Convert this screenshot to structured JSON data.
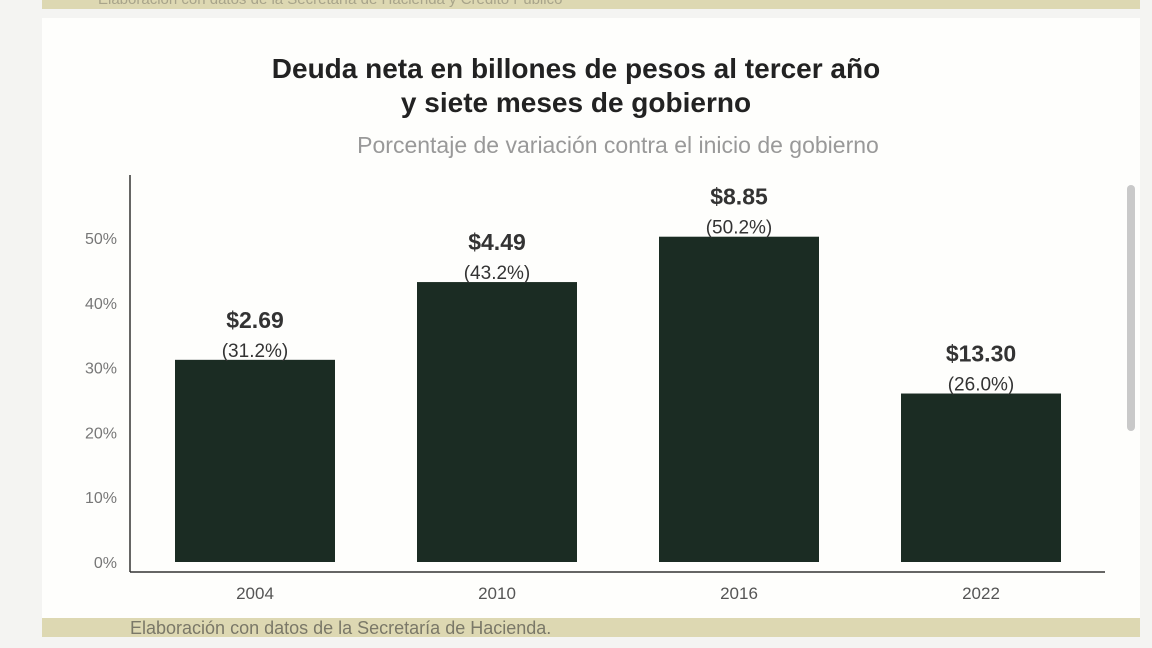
{
  "source_top": "Elaboración con datos de la Secretaría de Hacienda y Crédito Público",
  "source_bottom": "Elaboración con datos de la Secretaría de Hacienda.",
  "chart_data": {
    "type": "bar",
    "title_line1": "Deuda neta en billones de pesos al tercer año",
    "title_line2": "y siete meses de gobierno",
    "subtitle": "Porcentaje de variación contra el inicio de gobierno",
    "categories": [
      "2004",
      "2010",
      "2016",
      "2022"
    ],
    "values": [
      31.2,
      43.2,
      50.2,
      26.0
    ],
    "amount_labels": [
      "$2.69",
      "$4.49",
      "$8.85",
      "$13.30"
    ],
    "percent_labels": [
      "(31.2%)",
      "(43.2%)",
      "(50.2%)",
      "(26.0%)"
    ],
    "yticks": [
      "0%",
      "10%",
      "20%",
      "30%",
      "40%",
      "50%"
    ],
    "ylim": [
      0,
      60
    ],
    "grid": false,
    "bar_color": "#1b2c23"
  }
}
